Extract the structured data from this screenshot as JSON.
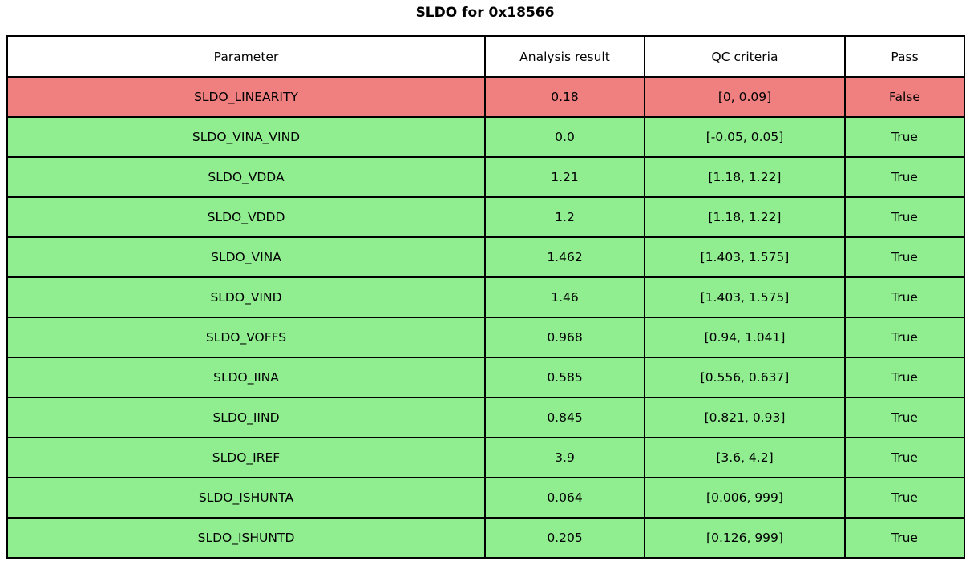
{
  "title": "SLDO for 0x18566",
  "colors": {
    "fail_row": "#F08080",
    "pass_row": "#90EE90",
    "border": "#000000",
    "header_background": "#FFFFFF"
  },
  "chart_data": {
    "type": "table",
    "title": "SLDO for 0x18566",
    "columns": [
      "Parameter",
      "Analysis result",
      "QC criteria",
      "Pass"
    ],
    "rows": [
      {
        "parameter": "SLDO_LINEARITY",
        "result": "0.18",
        "criteria": "[0, 0.09]",
        "pass": "False"
      },
      {
        "parameter": "SLDO_VINA_VIND",
        "result": "0.0",
        "criteria": "[-0.05, 0.05]",
        "pass": "True"
      },
      {
        "parameter": "SLDO_VDDA",
        "result": "1.21",
        "criteria": "[1.18, 1.22]",
        "pass": "True"
      },
      {
        "parameter": "SLDO_VDDD",
        "result": "1.2",
        "criteria": "[1.18, 1.22]",
        "pass": "True"
      },
      {
        "parameter": "SLDO_VINA",
        "result": "1.462",
        "criteria": "[1.403, 1.575]",
        "pass": "True"
      },
      {
        "parameter": "SLDO_VIND",
        "result": "1.46",
        "criteria": "[1.403, 1.575]",
        "pass": "True"
      },
      {
        "parameter": "SLDO_VOFFS",
        "result": "0.968",
        "criteria": "[0.94, 1.041]",
        "pass": "True"
      },
      {
        "parameter": "SLDO_IINA",
        "result": "0.585",
        "criteria": "[0.556, 0.637]",
        "pass": "True"
      },
      {
        "parameter": "SLDO_IIND",
        "result": "0.845",
        "criteria": "[0.821, 0.93]",
        "pass": "True"
      },
      {
        "parameter": "SLDO_IREF",
        "result": "3.9",
        "criteria": "[3.6, 4.2]",
        "pass": "True"
      },
      {
        "parameter": "SLDO_ISHUNTA",
        "result": "0.064",
        "criteria": "[0.006, 999]",
        "pass": "True"
      },
      {
        "parameter": "SLDO_ISHUNTD",
        "result": "0.205",
        "criteria": "[0.126, 999]",
        "pass": "True"
      }
    ]
  }
}
